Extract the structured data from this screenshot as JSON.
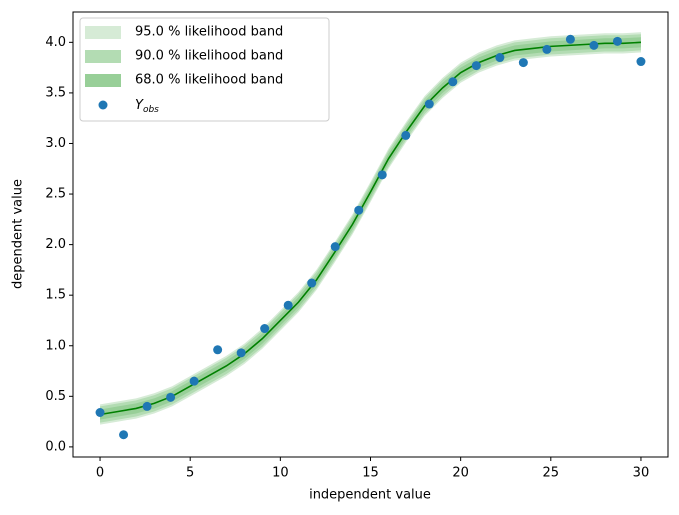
{
  "chart_data": {
    "type": "line",
    "xlabel": "independent value",
    "ylabel": "dependent value",
    "xlim": [
      -1.5,
      31.5
    ],
    "ylim": [
      -0.1,
      4.3
    ],
    "xticks": [
      0,
      5,
      10,
      15,
      20,
      25,
      30
    ],
    "yticks": [
      {
        "value": 0,
        "label": "0.0"
      },
      0.5,
      {
        "value": 1,
        "label": "1.0"
      },
      1.5,
      {
        "value": 2,
        "label": "2.0"
      },
      2.5,
      {
        "value": 3,
        "label": "3.0"
      },
      3.5,
      {
        "value": 4,
        "label": "4.0"
      }
    ],
    "legend": "upper left",
    "x": [
      0,
      1,
      2,
      3,
      4,
      5,
      6,
      7,
      8,
      9,
      10,
      11,
      12,
      13,
      14,
      15,
      16,
      17,
      18,
      19,
      20,
      21,
      22,
      23,
      24,
      25,
      26,
      27,
      28,
      29,
      30
    ],
    "series": [
      {
        "color": "#008000",
        "values": [
          0.32,
          0.35,
          0.38,
          0.43,
          0.5,
          0.6,
          0.7,
          0.8,
          0.92,
          1.07,
          1.25,
          1.43,
          1.65,
          1.92,
          2.2,
          2.52,
          2.85,
          3.12,
          3.37,
          3.55,
          3.7,
          3.8,
          3.87,
          3.92,
          3.94,
          3.96,
          3.97,
          3.98,
          3.99,
          3.99,
          4.0
        ]
      }
    ],
    "bands": [
      {
        "name": "95.0 % likelihood band",
        "color": "#d6ebd6",
        "lower": [
          0.22,
          0.25,
          0.28,
          0.33,
          0.4,
          0.5,
          0.6,
          0.7,
          0.82,
          0.97,
          1.15,
          1.33,
          1.55,
          1.82,
          2.1,
          2.42,
          2.75,
          3.02,
          3.27,
          3.45,
          3.6,
          3.7,
          3.77,
          3.82,
          3.84,
          3.86,
          3.87,
          3.88,
          3.89,
          3.89,
          3.9
        ],
        "upper": [
          0.42,
          0.45,
          0.48,
          0.53,
          0.6,
          0.7,
          0.8,
          0.9,
          1.02,
          1.17,
          1.35,
          1.53,
          1.75,
          2.02,
          2.3,
          2.62,
          2.95,
          3.22,
          3.47,
          3.65,
          3.8,
          3.9,
          3.97,
          4.02,
          4.04,
          4.06,
          4.07,
          4.08,
          4.09,
          4.09,
          4.1
        ]
      },
      {
        "name": "90.0 % likelihood band",
        "color": "#b3dcb3",
        "lower": [
          0.24,
          0.27,
          0.3,
          0.35,
          0.42,
          0.52,
          0.62,
          0.72,
          0.84,
          0.99,
          1.17,
          1.35,
          1.57,
          1.84,
          2.12,
          2.44,
          2.77,
          3.04,
          3.29,
          3.47,
          3.62,
          3.72,
          3.79,
          3.84,
          3.86,
          3.88,
          3.89,
          3.9,
          3.91,
          3.91,
          3.92
        ],
        "upper": [
          0.4,
          0.43,
          0.46,
          0.51,
          0.58,
          0.68,
          0.78,
          0.88,
          1.0,
          1.15,
          1.33,
          1.51,
          1.73,
          2.0,
          2.28,
          2.6,
          2.93,
          3.2,
          3.45,
          3.63,
          3.78,
          3.88,
          3.95,
          4.0,
          4.02,
          4.04,
          4.05,
          4.06,
          4.07,
          4.07,
          4.08
        ]
      },
      {
        "name": "68.0 % likelihood band",
        "color": "#98cf98",
        "lower": [
          0.27,
          0.3,
          0.33,
          0.38,
          0.45,
          0.55,
          0.65,
          0.75,
          0.87,
          1.02,
          1.2,
          1.38,
          1.6,
          1.87,
          2.15,
          2.47,
          2.8,
          3.07,
          3.32,
          3.5,
          3.65,
          3.75,
          3.82,
          3.87,
          3.89,
          3.91,
          3.92,
          3.93,
          3.94,
          3.94,
          3.95
        ],
        "upper": [
          0.37,
          0.4,
          0.43,
          0.48,
          0.55,
          0.65,
          0.75,
          0.85,
          0.97,
          1.12,
          1.3,
          1.48,
          1.7,
          1.97,
          2.25,
          2.57,
          2.9,
          3.17,
          3.42,
          3.6,
          3.75,
          3.85,
          3.92,
          3.97,
          3.99,
          4.01,
          4.02,
          4.03,
          4.04,
          4.04,
          4.05
        ]
      }
    ],
    "scatter": {
      "name": "Y",
      "name_subscript": "obs",
      "color": "#1f77b4",
      "x": [
        0,
        1.304,
        2.609,
        3.913,
        5.217,
        6.522,
        7.826,
        9.13,
        10.435,
        11.739,
        13.043,
        14.348,
        15.652,
        16.957,
        18.261,
        19.565,
        20.87,
        22.174,
        23.478,
        24.783,
        26.087,
        27.391,
        28.696,
        30
      ],
      "values": [
        0.34,
        0.12,
        0.4,
        0.49,
        0.65,
        0.96,
        0.93,
        1.17,
        1.4,
        1.62,
        1.98,
        2.34,
        2.69,
        3.08,
        3.39,
        3.61,
        3.77,
        3.85,
        3.8,
        3.93,
        4.03,
        3.97,
        4.01,
        3.81
      ]
    }
  }
}
